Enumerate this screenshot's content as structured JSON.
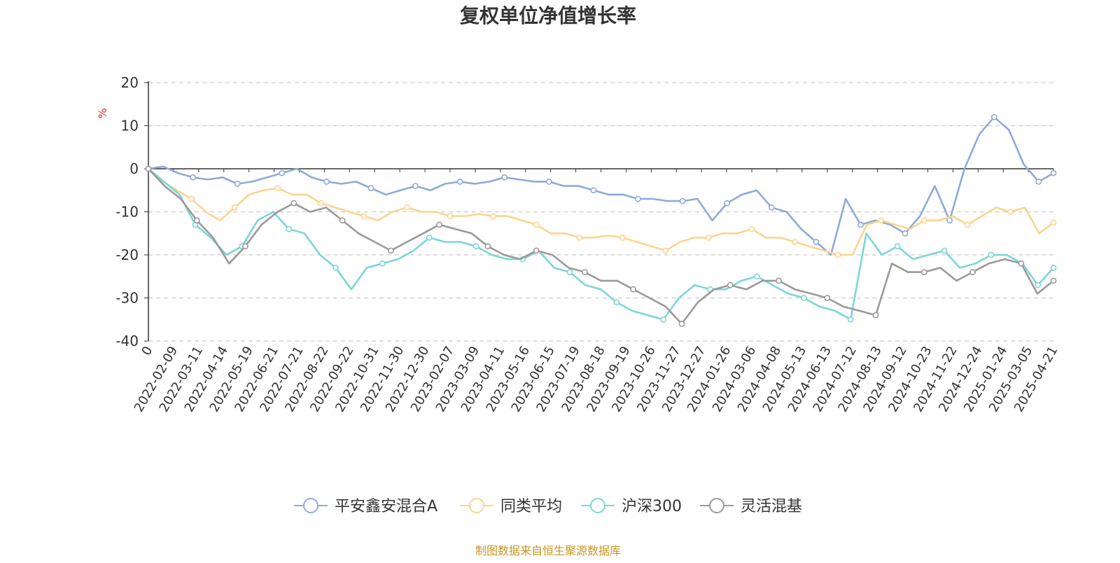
{
  "chart_data": {
    "type": "line",
    "title": "复权单位净值增长率",
    "ylabel": "%",
    "xlabel": "",
    "ylim": [
      -40,
      20
    ],
    "yticks": [
      20,
      10,
      0,
      -10,
      -20,
      -30,
      -40
    ],
    "grid": true,
    "legend_position": "bottom-center",
    "source": "制图数据来自恒生聚源数据库",
    "x_tick_labels": [
      "0",
      "2022-02-09",
      "2022-03-11",
      "2022-04-14",
      "2022-05-19",
      "2022-06-21",
      "2022-07-21",
      "2022-08-22",
      "2022-09-22",
      "2022-10-31",
      "2022-11-30",
      "2022-12-30",
      "2023-02-07",
      "2023-03-09",
      "2023-04-11",
      "2023-05-16",
      "2023-06-15",
      "2023-07-19",
      "2023-08-18",
      "2023-09-19",
      "2023-10-26",
      "2023-11-27",
      "2023-12-27",
      "2024-01-26",
      "2024-03-06",
      "2024-04-08",
      "2024-05-13",
      "2024-06-13",
      "2024-07-12",
      "2024-08-13",
      "2024-09-12",
      "2024-10-23",
      "2024-11-22",
      "2024-12-24",
      "2025-01-24",
      "2025-03-05",
      "2025-04-21"
    ],
    "series": [
      {
        "name": "平安鑫安混合A",
        "color": "#8eaadb",
        "values": [
          0,
          0.5,
          -1,
          -2,
          -2.5,
          -2,
          -3.5,
          -3,
          -2,
          -1,
          0,
          -2,
          -3,
          -3.5,
          -3,
          -4.5,
          -6,
          -5,
          -4,
          -5,
          -3.5,
          -3,
          -3.5,
          -3,
          -2,
          -2.5,
          -3,
          -3,
          -4,
          -4,
          -5,
          -6,
          -6,
          -7,
          -7,
          -7.5,
          -7.5,
          -7,
          -12,
          -8,
          -6,
          -5,
          -9,
          -10,
          -14,
          -17,
          -20,
          -7,
          -13,
          -12,
          -13,
          -15,
          -11,
          -4,
          -12,
          0,
          8,
          12,
          9,
          1,
          -3,
          -1
        ]
      },
      {
        "name": "同类平均",
        "color": "#fdd48f",
        "values": [
          0,
          -3,
          -5,
          -7,
          -10,
          -12,
          -9,
          -6,
          -5,
          -4.5,
          -6,
          -6,
          -8,
          -9,
          -10,
          -11,
          -12,
          -10,
          -9,
          -10,
          -10,
          -11,
          -11,
          -10.5,
          -11,
          -11,
          -12,
          -13,
          -15,
          -15,
          -16,
          -16,
          -15.5,
          -16,
          -17,
          -18,
          -19,
          -17,
          -16,
          -16,
          -15,
          -15,
          -14,
          -16,
          -16,
          -17,
          -18,
          -19,
          -20,
          -20,
          -13,
          -12,
          -13,
          -14,
          -12,
          -12,
          -11,
          -13,
          -11,
          -9,
          -10,
          -9,
          -15,
          -12.5
        ]
      },
      {
        "name": "沪深300",
        "color": "#7dd6d6",
        "values": [
          0,
          -3,
          -6,
          -13,
          -16,
          -20,
          -18,
          -12,
          -10,
          -14,
          -15,
          -20,
          -23,
          -28,
          -23,
          -22,
          -21,
          -19,
          -16,
          -17,
          -17,
          -18,
          -20,
          -21,
          -21,
          -19,
          -23,
          -24,
          -27,
          -28,
          -31,
          -33,
          -34,
          -35,
          -30,
          -27,
          -28,
          -28,
          -26,
          -25,
          -27,
          -29,
          -30,
          -32,
          -33,
          -35,
          -15,
          -20,
          -18,
          -21,
          -20,
          -19,
          -23,
          -22,
          -20,
          -20,
          -22,
          -27,
          -23
        ]
      },
      {
        "name": "灵活混基",
        "color": "#9a9a9a",
        "values": [
          0,
          -4,
          -7,
          -12,
          -16,
          -22,
          -18,
          -13,
          -10,
          -8,
          -10,
          -9,
          -12,
          -15,
          -17,
          -19,
          -17,
          -15,
          -13,
          -14,
          -15,
          -18,
          -20,
          -21,
          -19,
          -20,
          -23,
          -24,
          -26,
          -26,
          -28,
          -30,
          -32,
          -36,
          -31,
          -28,
          -27,
          -28,
          -26,
          -26,
          -28,
          -29,
          -30,
          -32,
          -33,
          -34,
          -22,
          -24,
          -24,
          -23,
          -26,
          -24,
          -22,
          -21,
          -22,
          -29,
          -26
        ]
      }
    ]
  }
}
